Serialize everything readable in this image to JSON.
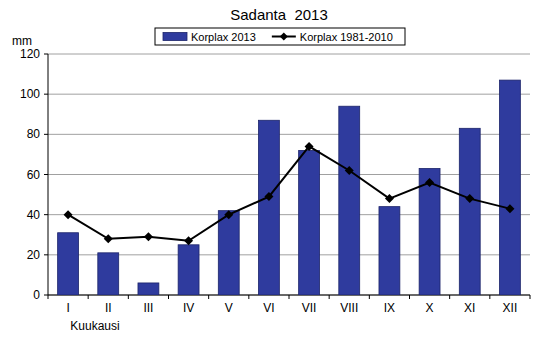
{
  "chart_data": {
    "type": "bar",
    "title": "Sadanta  2013",
    "ylabel": "mm",
    "xlabel": "Kuukausi",
    "categories": [
      "I",
      "II",
      "III",
      "IV",
      "V",
      "VI",
      "VII",
      "VIII",
      "IX",
      "X",
      "XI",
      "XII"
    ],
    "series": [
      {
        "name": "Korplax 2013",
        "type": "bar",
        "color": "#2f3b9e",
        "values": [
          31,
          21,
          6,
          25,
          42,
          87,
          72,
          94,
          44,
          63,
          83,
          107
        ]
      },
      {
        "name": "Korplax 1981-2010",
        "type": "line",
        "color": "#000000",
        "marker": "diamond",
        "values": [
          40,
          28,
          29,
          27,
          40,
          49,
          74,
          62,
          48,
          56,
          48,
          43
        ]
      }
    ],
    "ylim": [
      0,
      120
    ],
    "yticks": [
      0,
      20,
      40,
      60,
      80,
      100,
      120
    ],
    "grid": true,
    "legend": "top"
  }
}
